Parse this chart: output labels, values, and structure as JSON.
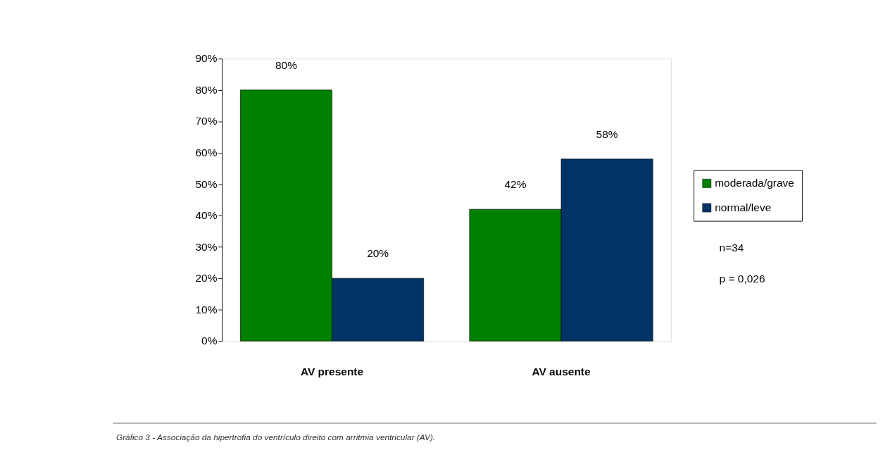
{
  "chart_data": {
    "type": "bar",
    "categories": [
      "AV presente",
      "AV ausente"
    ],
    "series": [
      {
        "name": "moderada/grave",
        "color": "#008000",
        "values": [
          80,
          42
        ],
        "value_labels": [
          "80%",
          "42%"
        ]
      },
      {
        "name": "normal/leve",
        "color": "#003366",
        "values": [
          20,
          58
        ],
        "value_labels": [
          "20%",
          "58%"
        ]
      }
    ],
    "ylim": [
      0,
      90
    ],
    "yticks": [
      {
        "value": 0,
        "label": "0%"
      },
      {
        "value": 10,
        "label": "10%"
      },
      {
        "value": 20,
        "label": "20%"
      },
      {
        "value": 30,
        "label": "30%"
      },
      {
        "value": 40,
        "label": "40%"
      },
      {
        "value": 50,
        "label": "50%"
      },
      {
        "value": 60,
        "label": "60%"
      },
      {
        "value": 70,
        "label": "70%"
      },
      {
        "value": 80,
        "label": "80%"
      },
      {
        "value": 90,
        "label": "90%"
      }
    ],
    "grid": false,
    "legend": "right",
    "annotations": [
      "n=34",
      "p = 0,026",
      "Gráfico 3 - Associação da hipertrofia do ventrículo direito com arritmia ventricular (AV)."
    ]
  }
}
